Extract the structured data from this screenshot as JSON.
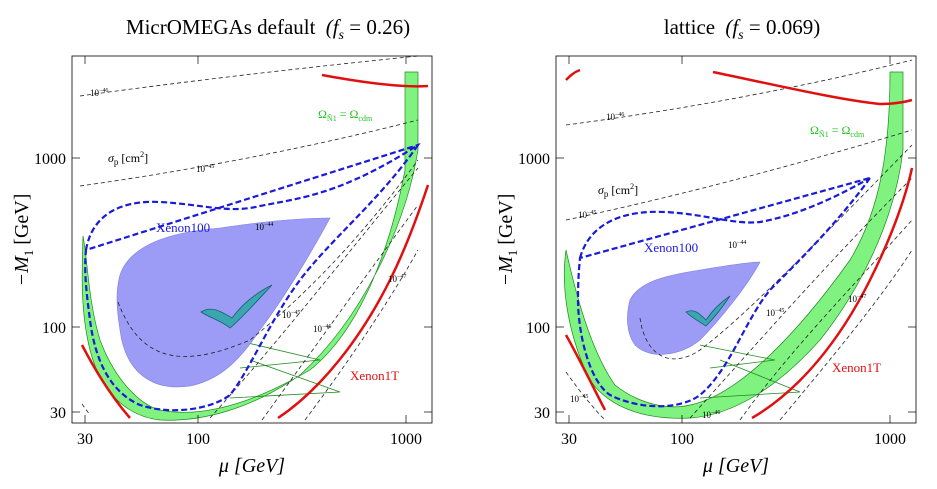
{
  "chart_data": [
    {
      "type": "contour",
      "title": "MicrOMEGAs default",
      "title_param": "(f",
      "title_param_sub": "s",
      "title_param_rest": " = 0.26)",
      "xlabel": "μ [GeV]",
      "ylabel": "−M",
      "ylabel_sub": "1",
      "ylabel_rest": " [GeV]",
      "xscale": "log",
      "yscale": "log",
      "xlim": [
        25,
        1300
      ],
      "ylim": [
        25,
        4000
      ],
      "xticks": [
        "30",
        "100",
        "1000"
      ],
      "yticks": [
        "30",
        "100",
        "1000"
      ],
      "labels": {
        "xenon100": "Xenon100",
        "xenon1t": "Xenon1T",
        "sigma": "σ",
        "sigma_sub": "p",
        "sigma_unit": " [cm",
        "sigma_unit_sup": "2",
        "sigma_close": "]",
        "omega": "Ω",
        "omega_sub": "Ñ1",
        "omega_eq": " = Ω",
        "omega_sub2": "cdm"
      },
      "contours": [
        {
          "label": "10",
          "exp": "−46",
          "colour": "#000000"
        },
        {
          "label": "10",
          "exp": "−45",
          "colour": "#000000"
        },
        {
          "label": "10",
          "exp": "−44",
          "colour": "#000000"
        },
        {
          "label": "10",
          "exp": "−45",
          "colour": "#000000"
        },
        {
          "label": "10",
          "exp": "−46",
          "colour": "#000000"
        },
        {
          "label": "10",
          "exp": "−47",
          "colour": "#000000"
        }
      ],
      "colors": {
        "xenon100": "#1a1adb",
        "xenon1t": "#e01010",
        "relic": "#7ff27f",
        "excluded": "#9c9cf7"
      }
    },
    {
      "type": "contour",
      "title": "lattice",
      "title_param": "(f",
      "title_param_sub": "s",
      "title_param_rest": " = 0.069)",
      "xlabel": "μ [GeV]",
      "ylabel": "−M",
      "ylabel_sub": "1",
      "ylabel_rest": " [GeV]",
      "xscale": "log",
      "yscale": "log",
      "xlim": [
        25,
        1300
      ],
      "ylim": [
        25,
        4000
      ],
      "xticks": [
        "30",
        "100",
        "1000"
      ],
      "yticks": [
        "30",
        "100",
        "1000"
      ],
      "labels": {
        "xenon100": "Xenon100",
        "xenon1t": "Xenon1T",
        "sigma": "σ",
        "sigma_sub": "p",
        "sigma_unit": " [cm",
        "sigma_unit_sup": "2",
        "sigma_close": "]",
        "omega": "Ω",
        "omega_sub": "Ñ1",
        "omega_eq": " = Ω",
        "omega_sub2": "cdm"
      },
      "contours": [
        {
          "label": "10",
          "exp": "−46",
          "colour": "#000000"
        },
        {
          "label": "10",
          "exp": "−45",
          "colour": "#000000"
        },
        {
          "label": "10",
          "exp": "−44",
          "colour": "#000000"
        },
        {
          "label": "10",
          "exp": "−45",
          "colour": "#000000"
        },
        {
          "label": "10",
          "exp": "−47",
          "colour": "#000000"
        },
        {
          "label": "10",
          "exp": "−45",
          "colour": "#000000"
        },
        {
          "label": "10",
          "exp": "−46",
          "colour": "#000000"
        }
      ],
      "colors": {
        "xenon100": "#1a1adb",
        "xenon1t": "#e01010",
        "relic": "#7ff27f",
        "excluded": "#9c9cf7"
      }
    }
  ]
}
